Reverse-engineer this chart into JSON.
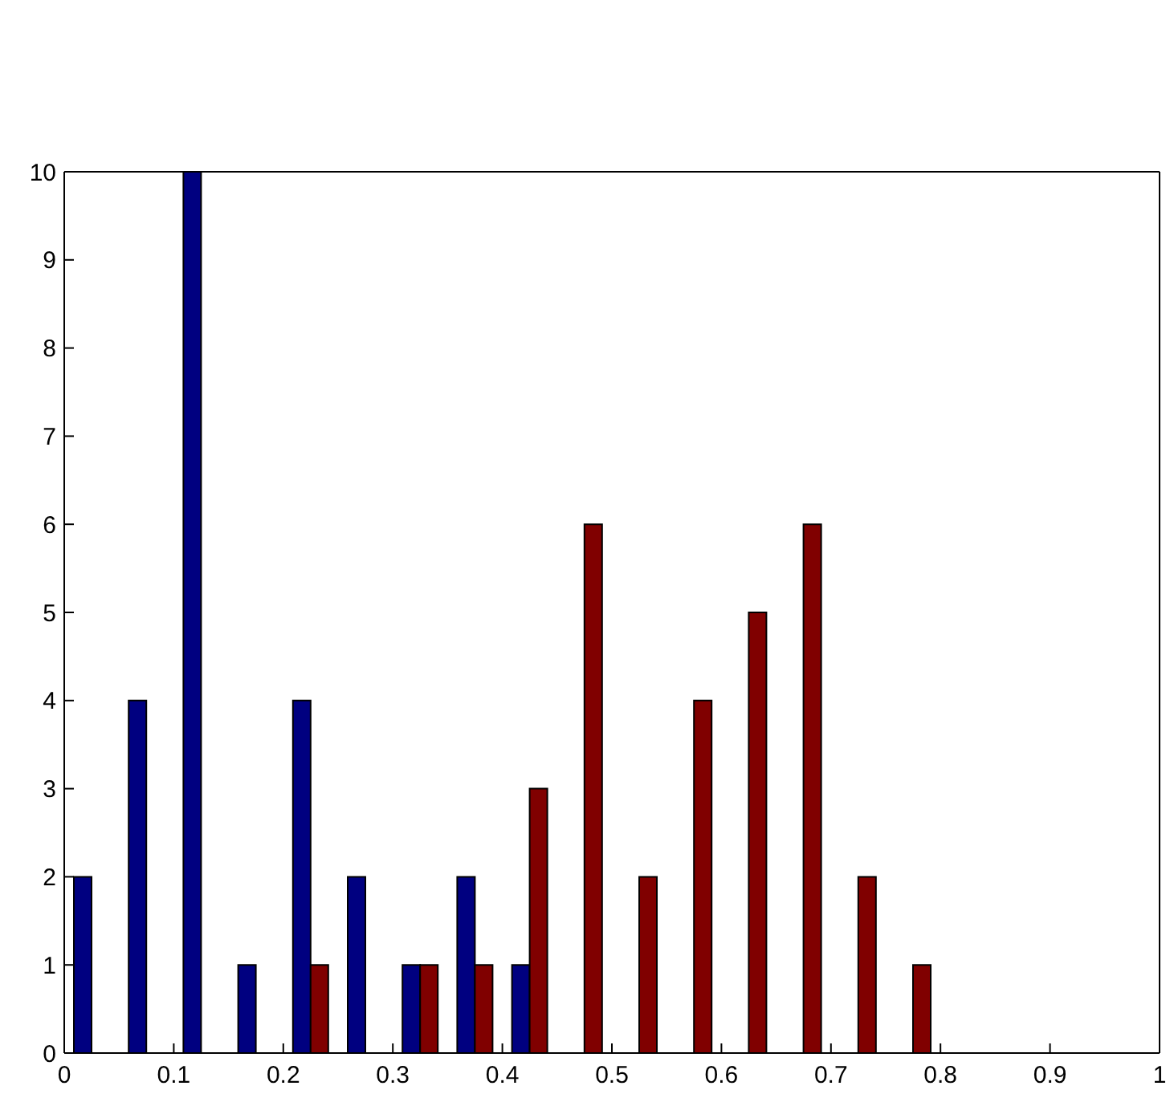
{
  "chart_data": {
    "type": "bar",
    "x": [
      0.025,
      0.075,
      0.125,
      0.175,
      0.225,
      0.275,
      0.325,
      0.375,
      0.425,
      0.475,
      0.525,
      0.575,
      0.625,
      0.675,
      0.725,
      0.775
    ],
    "series": [
      {
        "color": "#000080",
        "values": [
          2,
          4,
          10,
          1,
          4,
          2,
          1,
          2,
          1,
          0,
          0,
          0,
          0,
          0,
          0,
          0
        ]
      },
      {
        "color": "#800000",
        "values": [
          0,
          0,
          0,
          0,
          1,
          0,
          1,
          1,
          3,
          6,
          2,
          4,
          5,
          6,
          2,
          1
        ]
      }
    ],
    "xlim": [
      0,
      1
    ],
    "xticks": [
      0,
      0.1,
      0.2,
      0.3,
      0.4,
      0.5,
      0.6,
      0.7,
      0.8,
      0.9,
      1
    ],
    "ylim": [
      0,
      10
    ],
    "yticks": [
      0,
      1,
      2,
      3,
      4,
      5,
      6,
      7,
      8,
      9,
      10
    ]
  }
}
